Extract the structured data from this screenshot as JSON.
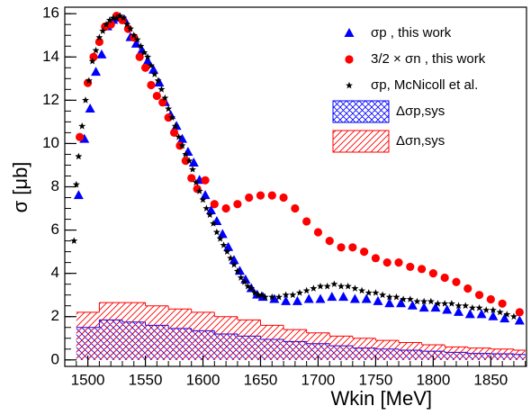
{
  "chart_data": {
    "type": "scatter",
    "x_label": "Wkin [MeV]",
    "y_label": "σ [μb]",
    "xlim": [
      1480,
      1881
    ],
    "ylim": [
      -0.3,
      16.3
    ],
    "xticks": [
      1500,
      1550,
      1600,
      1650,
      1700,
      1750,
      1800,
      1850
    ],
    "yticks": [
      0,
      2,
      4,
      6,
      8,
      10,
      12,
      14,
      16
    ],
    "legend": "upper right",
    "series": [
      {
        "name": "σp , this work",
        "color": "#0000ff",
        "marker": "triangle",
        "x": [
          1492,
          1497,
          1502,
          1507,
          1512,
          1517,
          1522,
          1527,
          1532,
          1537,
          1542,
          1547,
          1552,
          1557,
          1562,
          1567,
          1572,
          1577,
          1582,
          1587,
          1592,
          1597,
          1602,
          1607,
          1612,
          1617,
          1622,
          1627,
          1632,
          1637,
          1642,
          1647,
          1652,
          1662,
          1672,
          1682,
          1692,
          1702,
          1712,
          1722,
          1732,
          1742,
          1752,
          1762,
          1772,
          1782,
          1792,
          1802,
          1812,
          1822,
          1832,
          1842,
          1852,
          1862,
          1875
        ],
        "values": [
          7.6,
          10.2,
          11.6,
          13.3,
          14.1,
          15.4,
          15.7,
          15.8,
          15.7,
          14.9,
          14.6,
          14.3,
          13.8,
          13.4,
          12.8,
          11.9,
          11.3,
          10.8,
          10.2,
          9.6,
          9.1,
          8.3,
          7.6,
          6.9,
          6.4,
          5.8,
          5.2,
          4.6,
          4.1,
          3.7,
          3.3,
          3.0,
          2.9,
          2.8,
          2.7,
          2.7,
          2.8,
          2.8,
          2.9,
          2.9,
          2.8,
          2.8,
          2.7,
          2.6,
          2.6,
          2.5,
          2.4,
          2.4,
          2.3,
          2.2,
          2.1,
          2.1,
          2.0,
          1.9,
          1.8
        ]
      },
      {
        "name": "3/2 × σn , this work",
        "color": "#ff0000",
        "marker": "circle",
        "x": [
          1493,
          1500,
          1505,
          1510,
          1515,
          1520,
          1525,
          1530,
          1535,
          1540,
          1545,
          1550,
          1555,
          1560,
          1565,
          1570,
          1575,
          1580,
          1585,
          1590,
          1595,
          1602,
          1610,
          1620,
          1630,
          1640,
          1650,
          1660,
          1670,
          1680,
          1690,
          1700,
          1710,
          1720,
          1730,
          1740,
          1750,
          1760,
          1770,
          1780,
          1790,
          1800,
          1810,
          1820,
          1830,
          1840,
          1850,
          1860,
          1875
        ],
        "values": [
          10.3,
          12.8,
          14.0,
          14.7,
          15.4,
          15.5,
          15.9,
          15.7,
          15.3,
          14.9,
          14.0,
          13.5,
          12.7,
          12.2,
          11.9,
          11.2,
          10.5,
          9.9,
          9.2,
          8.4,
          7.9,
          8.3,
          7.2,
          7.0,
          7.2,
          7.5,
          7.6,
          7.6,
          7.5,
          7.0,
          6.4,
          5.9,
          5.5,
          5.2,
          5.2,
          5.0,
          4.7,
          4.5,
          4.5,
          4.3,
          4.2,
          4.0,
          3.8,
          3.6,
          3.3,
          3.0,
          2.8,
          2.6,
          2.2
        ]
      },
      {
        "name": "σp, McNicoll et al.",
        "color": "#000000",
        "marker": "star",
        "x": [
          1488,
          1490,
          1492,
          1495,
          1498,
          1501,
          1504,
          1507,
          1510,
          1513,
          1516,
          1519,
          1522,
          1525,
          1528,
          1531,
          1534,
          1537,
          1540,
          1543,
          1546,
          1549,
          1552,
          1555,
          1558,
          1561,
          1564,
          1567,
          1570,
          1573,
          1576,
          1579,
          1582,
          1585,
          1588,
          1591,
          1594,
          1597,
          1600,
          1603,
          1606,
          1609,
          1612,
          1615,
          1618,
          1621,
          1624,
          1627,
          1630,
          1633,
          1636,
          1639,
          1642,
          1645,
          1648,
          1651,
          1654,
          1660,
          1666,
          1672,
          1678,
          1684,
          1690,
          1696,
          1702,
          1708,
          1714,
          1720,
          1726,
          1732,
          1738,
          1744,
          1750,
          1756,
          1762,
          1768,
          1774,
          1780,
          1786,
          1792,
          1798,
          1804,
          1810,
          1816,
          1822,
          1828,
          1834,
          1840,
          1846,
          1852,
          1858,
          1864,
          1870
        ],
        "values": [
          5.5,
          8.1,
          9.4,
          10.8,
          12.0,
          12.9,
          13.8,
          14.3,
          14.9,
          15.2,
          15.5,
          15.7,
          15.8,
          15.8,
          15.9,
          15.8,
          15.5,
          15.3,
          15.0,
          14.8,
          14.5,
          14.2,
          14.0,
          13.6,
          13.2,
          12.9,
          12.5,
          12.1,
          11.6,
          11.2,
          10.8,
          10.3,
          9.9,
          9.5,
          9.2,
          8.8,
          8.2,
          7.8,
          7.4,
          7.0,
          6.7,
          6.3,
          5.9,
          5.6,
          5.3,
          5.0,
          4.7,
          4.4,
          4.1,
          3.8,
          3.6,
          3.4,
          3.3,
          3.1,
          3.0,
          3.0,
          2.9,
          2.9,
          2.9,
          3.0,
          3.0,
          3.1,
          3.2,
          3.3,
          3.4,
          3.4,
          3.5,
          3.4,
          3.4,
          3.3,
          3.2,
          3.1,
          3.1,
          3.0,
          2.9,
          2.9,
          2.8,
          2.8,
          2.7,
          2.7,
          2.7,
          2.6,
          2.6,
          2.6,
          2.5,
          2.5,
          2.4,
          2.4,
          2.3,
          2.3,
          2.2,
          2.1,
          2.0
        ]
      },
      {
        "name": "Δσp,sys",
        "color": "#0000ff",
        "marker": "hatch-cross",
        "bins": [
          1490,
          1510,
          1530,
          1550,
          1570,
          1590,
          1610,
          1630,
          1650,
          1670,
          1690,
          1710,
          1730,
          1750,
          1770,
          1790,
          1810,
          1830,
          1850,
          1870,
          1880
        ],
        "values": [
          1.5,
          1.85,
          1.75,
          1.6,
          1.45,
          1.35,
          1.2,
          1.1,
          0.95,
          0.85,
          0.75,
          0.65,
          0.55,
          0.5,
          0.45,
          0.4,
          0.35,
          0.3,
          0.28,
          0.25
        ]
      },
      {
        "name": "Δσn,sys",
        "color": "#ff0000",
        "marker": "hatch-diag",
        "bins": [
          1490,
          1510,
          1530,
          1550,
          1570,
          1590,
          1610,
          1630,
          1650,
          1670,
          1690,
          1710,
          1730,
          1750,
          1770,
          1790,
          1810,
          1830,
          1850,
          1870,
          1880
        ],
        "values": [
          2.2,
          2.65,
          2.65,
          2.5,
          2.35,
          2.2,
          2.0,
          1.85,
          1.6,
          1.4,
          1.25,
          1.1,
          1.0,
          0.9,
          0.8,
          0.7,
          0.6,
          0.55,
          0.5,
          0.45
        ]
      }
    ]
  }
}
